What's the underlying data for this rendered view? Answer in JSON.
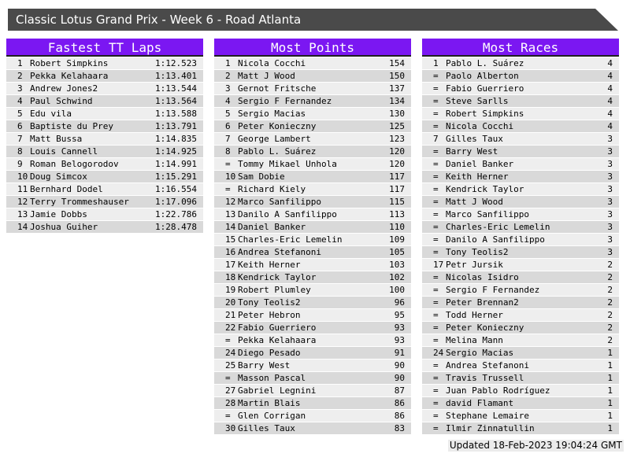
{
  "page_title": "Classic Lotus Grand Prix - Week 6 - Road Atlanta",
  "colors": {
    "accent": "#7b17f2",
    "titlebar_bg": "#4a4a4a",
    "row_odd": "#eeeeee",
    "row_even": "#d9d9d9"
  },
  "tables": [
    {
      "title": "Fastest TT Laps",
      "rows": [
        [
          "1",
          "Robert Simpkins",
          "1:12.523"
        ],
        [
          "2",
          "Pekka Kelahaara",
          "1:13.401"
        ],
        [
          "3",
          "Andrew Jones2",
          "1:13.544"
        ],
        [
          "4",
          "Paul Schwind",
          "1:13.564"
        ],
        [
          "5",
          "Edu vila",
          "1:13.588"
        ],
        [
          "6",
          "Baptiste du Prey",
          "1:13.791"
        ],
        [
          "7",
          "Matt Bussa",
          "1:14.835"
        ],
        [
          "8",
          "Louis Cannell",
          "1:14.925"
        ],
        [
          "9",
          "Roman Belogorodov",
          "1:14.991"
        ],
        [
          "10",
          "Doug Simcox",
          "1:15.291"
        ],
        [
          "11",
          "Bernhard Dodel",
          "1:16.554"
        ],
        [
          "12",
          "Terry Trommeshauser",
          "1:17.096"
        ],
        [
          "13",
          "Jamie Dobbs",
          "1:22.786"
        ],
        [
          "14",
          "Joshua Guiher",
          "1:28.478"
        ]
      ]
    },
    {
      "title": "Most Points",
      "rows": [
        [
          "1",
          "Nicola Cocchi",
          "154"
        ],
        [
          "2",
          "Matt J Wood",
          "150"
        ],
        [
          "3",
          "Gernot Fritsche",
          "137"
        ],
        [
          "4",
          "Sergio F Fernandez",
          "134"
        ],
        [
          "5",
          "Sergio Macias",
          "130"
        ],
        [
          "6",
          "Peter Konieczny",
          "125"
        ],
        [
          "7",
          "George Lambert",
          "123"
        ],
        [
          "8",
          "Pablo L. Suárez",
          "120"
        ],
        [
          "=",
          "Tommy Mikael Unhola",
          "120"
        ],
        [
          "10",
          "Sam Dobie",
          "117"
        ],
        [
          "=",
          "Richard Kiely",
          "117"
        ],
        [
          "12",
          "Marco Sanfilippo",
          "115"
        ],
        [
          "13",
          "Danilo A Sanfilippo",
          "113"
        ],
        [
          "14",
          "Daniel Banker",
          "110"
        ],
        [
          "15",
          "Charles-Eric Lemelin",
          "109"
        ],
        [
          "16",
          "Andrea Stefanoni",
          "105"
        ],
        [
          "17",
          "Keith Herner",
          "103"
        ],
        [
          "18",
          "Kendrick Taylor",
          "102"
        ],
        [
          "19",
          "Robert Plumley",
          "100"
        ],
        [
          "20",
          "Tony Teolis2",
          "96"
        ],
        [
          "21",
          "Peter Hebron",
          "95"
        ],
        [
          "22",
          "Fabio Guerriero",
          "93"
        ],
        [
          "=",
          "Pekka Kelahaara",
          "93"
        ],
        [
          "24",
          "Diego Pesado",
          "91"
        ],
        [
          "25",
          "Barry West",
          "90"
        ],
        [
          "=",
          "Masson Pascal",
          "90"
        ],
        [
          "27",
          "Gabriel Legnini",
          "87"
        ],
        [
          "28",
          "Martin Blais",
          "86"
        ],
        [
          "=",
          "Glen Corrigan",
          "86"
        ],
        [
          "30",
          "Gilles Taux",
          "83"
        ]
      ]
    },
    {
      "title": "Most Races",
      "rows": [
        [
          "1",
          "Pablo L. Suárez",
          "4"
        ],
        [
          "=",
          "Paolo Alberton",
          "4"
        ],
        [
          "=",
          "Fabio Guerriero",
          "4"
        ],
        [
          "=",
          "Steve Sarlls",
          "4"
        ],
        [
          "=",
          "Robert Simpkins",
          "4"
        ],
        [
          "=",
          "Nicola Cocchi",
          "4"
        ],
        [
          "7",
          "Gilles Taux",
          "3"
        ],
        [
          "=",
          "Barry West",
          "3"
        ],
        [
          "=",
          "Daniel Banker",
          "3"
        ],
        [
          "=",
          "Keith Herner",
          "3"
        ],
        [
          "=",
          "Kendrick Taylor",
          "3"
        ],
        [
          "=",
          "Matt J Wood",
          "3"
        ],
        [
          "=",
          "Marco Sanfilippo",
          "3"
        ],
        [
          "=",
          "Charles-Eric Lemelin",
          "3"
        ],
        [
          "=",
          "Danilo A Sanfilippo",
          "3"
        ],
        [
          "=",
          "Tony Teolis2",
          "3"
        ],
        [
          "17",
          "Petr Jursik",
          "2"
        ],
        [
          "=",
          "Nicolas Isidro",
          "2"
        ],
        [
          "=",
          "Sergio F Fernandez",
          "2"
        ],
        [
          "=",
          "Peter Brennan2",
          "2"
        ],
        [
          "=",
          "Todd Herner",
          "2"
        ],
        [
          "=",
          "Peter Konieczny",
          "2"
        ],
        [
          "=",
          "Melina Mann",
          "2"
        ],
        [
          "24",
          "Sergio Macias",
          "1"
        ],
        [
          "=",
          "Andrea Stefanoni",
          "1"
        ],
        [
          "=",
          "Travis Trussell",
          "1"
        ],
        [
          "=",
          "Juan Pablo Rodríguez",
          "1"
        ],
        [
          "=",
          "david Flamant",
          "1"
        ],
        [
          "=",
          "Stephane Lemaire",
          "1"
        ],
        [
          "=",
          "Ilmir Zinnatullin",
          "1"
        ]
      ]
    }
  ],
  "footer": {
    "updated": "Updated 18-Feb-2023 19:04:24 GMT"
  }
}
